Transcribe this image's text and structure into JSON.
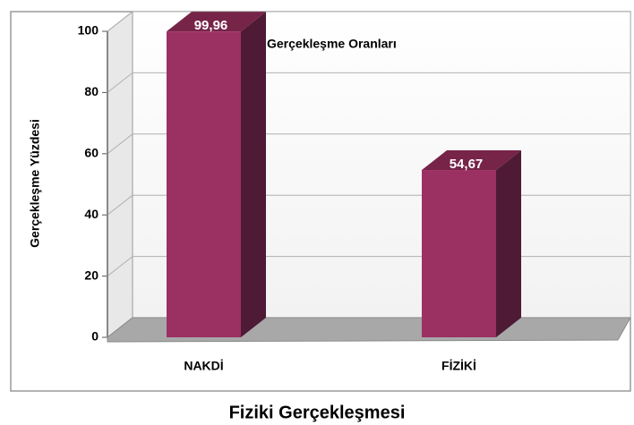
{
  "chart_data": {
    "type": "bar3d",
    "title": "Fiziki Gerçekleşmesi",
    "y_label": "Gerçekleşme Yüzdesi",
    "series": [
      {
        "name": "Gerçekleşme Oranları",
        "color": "#9b3063",
        "values": [
          99.96,
          54.67
        ],
        "value_labels": [
          "99,96",
          "54,67"
        ]
      }
    ],
    "categories": [
      "NAKDİ",
      "FİZİKİ"
    ],
    "ylim": [
      0,
      100
    ],
    "yticks": [
      0,
      20,
      40,
      60,
      80,
      100
    ],
    "grid": true
  }
}
